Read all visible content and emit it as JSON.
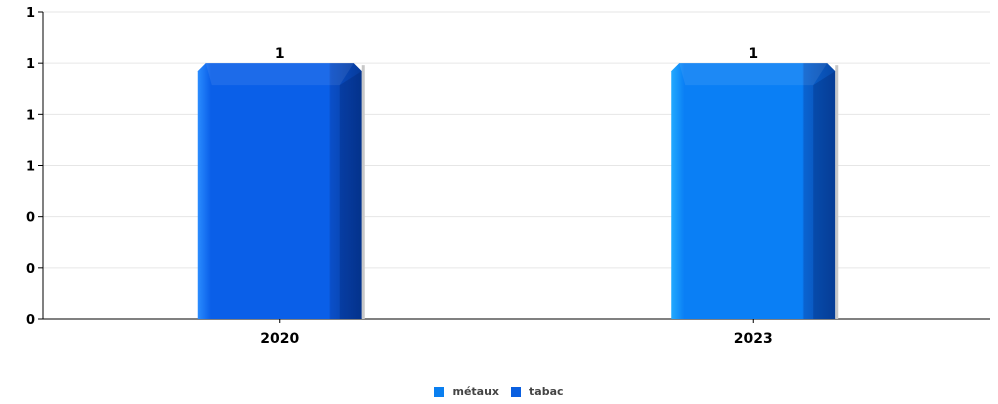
{
  "chart_data": {
    "type": "bar",
    "categories": [
      "2020",
      "2023"
    ],
    "y_tick_labels": [
      "0",
      "0",
      "0",
      "1",
      "1",
      "1",
      "1"
    ],
    "ylim": [
      0,
      1.2
    ],
    "grid": true,
    "legend_position": "bottom-center",
    "series": [
      {
        "name": "métaux",
        "color": "#0a7ff0",
        "values": [
          null,
          1
        ]
      },
      {
        "name": "tabac",
        "color": "#0a5fe0",
        "values": [
          1,
          null
        ]
      }
    ],
    "data_labels": [
      "1",
      "1"
    ]
  }
}
